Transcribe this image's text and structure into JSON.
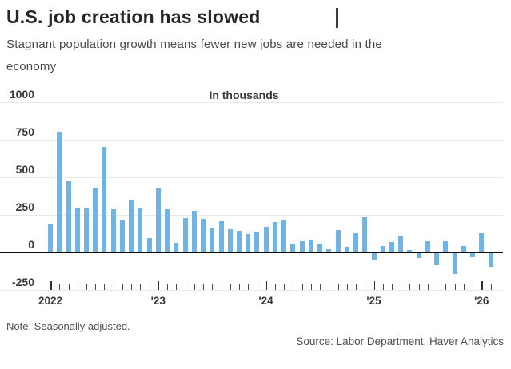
{
  "header": {
    "title": "U.S. job creation has slowed",
    "subtitle_line1": "Stagnant population growth means fewer new jobs are needed in the",
    "subtitle_line2": "economy"
  },
  "chart_data": {
    "type": "bar",
    "title": "U.S. job creation has slowed",
    "subtitle": "Stagnant population growth means fewer new jobs are needed in the economy",
    "units_label": "In thousands",
    "ylabel": "",
    "xlabel": "",
    "grid": true,
    "legend_position": "none",
    "bar_color": "#6fb4e4",
    "ylim": [
      -250,
      1000
    ],
    "y_axis": {
      "tick_values": [
        1000,
        750,
        500,
        250,
        0,
        -250
      ],
      "tick_labels": [
        "1000",
        "750",
        "500",
        "250",
        "0",
        "-250"
      ]
    },
    "x_axis": {
      "year_labels": [
        "2022",
        "'23",
        "'24",
        "'25",
        "'26"
      ],
      "year_month_indexes": [
        0,
        12,
        24,
        36,
        48
      ]
    },
    "categories": [
      "Jan 2022",
      "Feb 2022",
      "Mar 2022",
      "Apr 2022",
      "May 2022",
      "Jun 2022",
      "Jul 2022",
      "Aug 2022",
      "Sep 2022",
      "Oct 2022",
      "Nov 2022",
      "Dec 2022",
      "Jan 2023",
      "Feb 2023",
      "Mar 2023",
      "Apr 2023",
      "May 2023",
      "Jun 2023",
      "Jul 2023",
      "Aug 2023",
      "Sep 2023",
      "Oct 2023",
      "Nov 2023",
      "Dec 2023",
      "Jan 2024",
      "Feb 2024",
      "Mar 2024",
      "Apr 2024",
      "May 2024",
      "Jun 2024",
      "Jul 2024",
      "Aug 2024",
      "Sep 2024",
      "Oct 2024",
      "Nov 2024",
      "Dec 2024",
      "Jan 2025",
      "Feb 2025",
      "Mar 2025",
      "Apr 2025",
      "May 2025",
      "Jun 2025",
      "Jul 2025",
      "Aug 2025",
      "Sep 2025",
      "Oct 2025",
      "Nov 2025",
      "Dec 2025",
      "Jan 2026",
      "Feb 2026"
    ],
    "values": [
      180,
      800,
      470,
      295,
      290,
      420,
      695,
      280,
      210,
      340,
      290,
      90,
      420,
      280,
      60,
      225,
      270,
      220,
      155,
      205,
      150,
      140,
      115,
      135,
      165,
      195,
      215,
      55,
      70,
      80,
      55,
      15,
      145,
      30,
      125,
      230,
      -45,
      35,
      65,
      105,
      10,
      -30,
      70,
      -80,
      70,
      -140,
      35,
      -25,
      120,
      -90
    ]
  },
  "footer": {
    "note": "Note: Seasonally adjusted.",
    "source": "Source: Labor Department, Haver Analytics"
  },
  "colors": {
    "bar": "#6fb4e4",
    "gridline": "#e9e9e9",
    "zero_line": "#0d0d0d",
    "title_text": "#262626",
    "subtitle_text": "#4a4a4a",
    "axis_text": "#383838",
    "footer_text": "#4f4f4f"
  }
}
